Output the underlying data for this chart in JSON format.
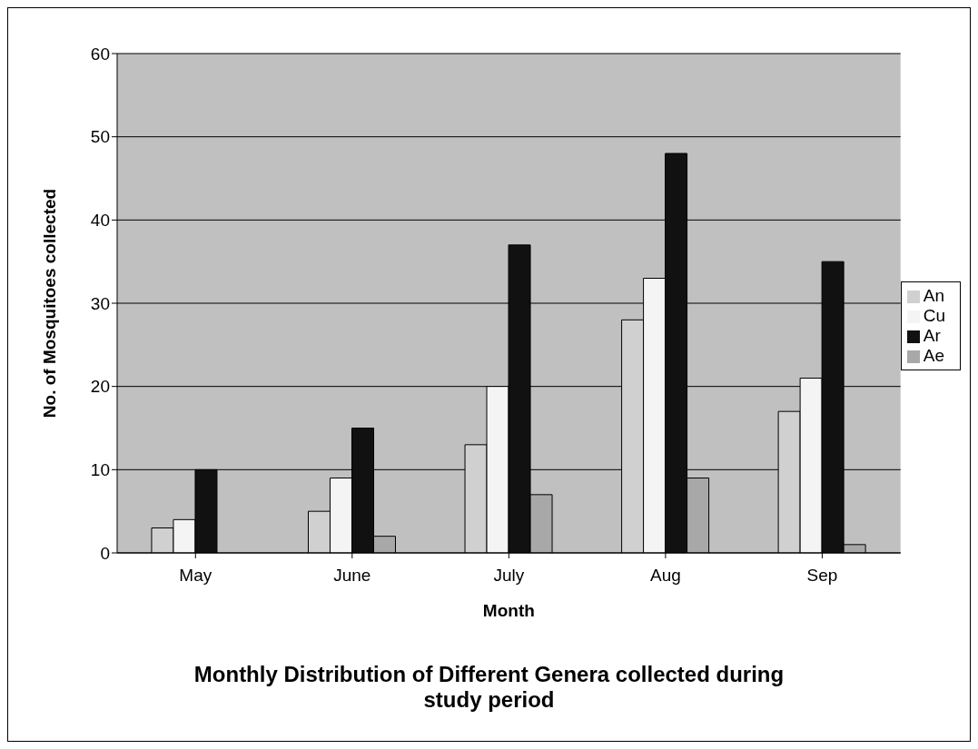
{
  "chart_data": {
    "type": "bar",
    "title": "Monthly Distribution of Different Genera collected during study period",
    "xlabel": "Month",
    "ylabel": "No. of Mosquitoes collected",
    "categories": [
      "May",
      "June",
      "July",
      "Aug",
      "Sep"
    ],
    "series": [
      {
        "name": "An",
        "color": "#d0d0d0",
        "values": [
          3,
          5,
          13,
          28,
          17
        ]
      },
      {
        "name": "Cu",
        "color": "#f4f4f4",
        "values": [
          4,
          9,
          20,
          33,
          21
        ]
      },
      {
        "name": "Ar",
        "color": "#111111",
        "values": [
          10,
          15,
          37,
          48,
          35
        ]
      },
      {
        "name": "Ae",
        "color": "#a8a8a8",
        "values": [
          0,
          2,
          7,
          9,
          1
        ]
      }
    ],
    "ylim": [
      0,
      60
    ],
    "yticks": [
      0,
      10,
      20,
      30,
      40,
      50,
      60
    ],
    "grid": "y",
    "legend": "right"
  }
}
